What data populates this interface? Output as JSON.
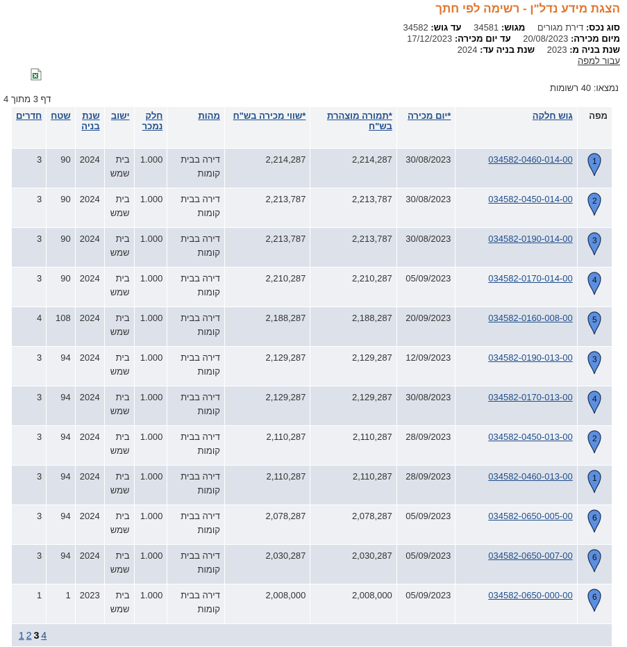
{
  "header": {
    "title": "הצגת מידע נדל\"ן - רשימה לפי חתך"
  },
  "criteria": {
    "asset_type_label": "סוג נכס:",
    "asset_type_value": "דירת מגורים",
    "from_gush_label": "מגוש:",
    "from_gush_value": "34581",
    "to_gush_label": "עד גוש:",
    "to_gush_value": "34582",
    "from_date_label": "מיום מכירה:",
    "from_date_value": "20/08/2023",
    "to_date_label": "עד יום מכירה:",
    "to_date_value": "17/12/2023",
    "from_year_label": "שנת בניה מ:",
    "from_year_value": "2023",
    "to_year_label": "שנת בניה עד:",
    "to_year_value": "2024",
    "map_link": "עבור למפה"
  },
  "summary": {
    "found": "נמצאו: 40 רשומות",
    "page_of": "דף 3 מתוך 4"
  },
  "table": {
    "headers": {
      "map": "מפה",
      "gush": "גוש חלקה",
      "date": "*יום מכירה",
      "declared": "*תמורה מוצהרת בש\"ח",
      "value": "*שווי מכירה בש\"ח",
      "type": "מהות",
      "part": "חלק נמכר",
      "city": "ישוב",
      "year": "שנת בניה",
      "area": "שטח",
      "rooms": "חדרים"
    },
    "rows": [
      {
        "pin": "1",
        "gush": "034582-0460-014-00",
        "date": "30/08/2023",
        "declared": "2,214,287",
        "value": "2,214,287",
        "type": "דירה בבית קומות",
        "part": "1.000",
        "city": "בית שמש",
        "year": "2024",
        "area": "90",
        "rooms": "3"
      },
      {
        "pin": "2",
        "gush": "034582-0450-014-00",
        "date": "30/08/2023",
        "declared": "2,213,787",
        "value": "2,213,787",
        "type": "דירה בבית קומות",
        "part": "1.000",
        "city": "בית שמש",
        "year": "2024",
        "area": "90",
        "rooms": "3"
      },
      {
        "pin": "3",
        "gush": "034582-0190-014-00",
        "date": "30/08/2023",
        "declared": "2,213,787",
        "value": "2,213,787",
        "type": "דירה בבית קומות",
        "part": "1.000",
        "city": "בית שמש",
        "year": "2024",
        "area": "90",
        "rooms": "3"
      },
      {
        "pin": "4",
        "gush": "034582-0170-014-00",
        "date": "05/09/2023",
        "declared": "2,210,287",
        "value": "2,210,287",
        "type": "דירה בבית קומות",
        "part": "1.000",
        "city": "בית שמש",
        "year": "2024",
        "area": "90",
        "rooms": "3"
      },
      {
        "pin": "5",
        "gush": "034582-0160-008-00",
        "date": "20/09/2023",
        "declared": "2,188,287",
        "value": "2,188,287",
        "type": "דירה בבית קומות",
        "part": "1.000",
        "city": "בית שמש",
        "year": "2024",
        "area": "108",
        "rooms": "4"
      },
      {
        "pin": "3",
        "gush": "034582-0190-013-00",
        "date": "12/09/2023",
        "declared": "2,129,287",
        "value": "2,129,287",
        "type": "דירה בבית קומות",
        "part": "1.000",
        "city": "בית שמש",
        "year": "2024",
        "area": "94",
        "rooms": "3"
      },
      {
        "pin": "4",
        "gush": "034582-0170-013-00",
        "date": "30/08/2023",
        "declared": "2,129,287",
        "value": "2,129,287",
        "type": "דירה בבית קומות",
        "part": "1.000",
        "city": "בית שמש",
        "year": "2024",
        "area": "94",
        "rooms": "3"
      },
      {
        "pin": "2",
        "gush": "034582-0450-013-00",
        "date": "28/09/2023",
        "declared": "2,110,287",
        "value": "2,110,287",
        "type": "דירה בבית קומות",
        "part": "1.000",
        "city": "בית שמש",
        "year": "2024",
        "area": "94",
        "rooms": "3"
      },
      {
        "pin": "1",
        "gush": "034582-0460-013-00",
        "date": "28/09/2023",
        "declared": "2,110,287",
        "value": "2,110,287",
        "type": "דירה בבית קומות",
        "part": "1.000",
        "city": "בית שמש",
        "year": "2024",
        "area": "94",
        "rooms": "3"
      },
      {
        "pin": "6",
        "gush": "034582-0650-005-00",
        "date": "05/09/2023",
        "declared": "2,078,287",
        "value": "2,078,287",
        "type": "דירה בבית קומות",
        "part": "1.000",
        "city": "בית שמש",
        "year": "2024",
        "area": "94",
        "rooms": "3"
      },
      {
        "pin": "6",
        "gush": "034582-0650-007-00",
        "date": "05/09/2023",
        "declared": "2,030,287",
        "value": "2,030,287",
        "type": "דירה בבית קומות",
        "part": "1.000",
        "city": "בית שמש",
        "year": "2024",
        "area": "94",
        "rooms": "3"
      },
      {
        "pin": "6",
        "gush": "034582-0650-000-00",
        "date": "05/09/2023",
        "declared": "2,008,000",
        "value": "2,008,000",
        "type": "דירה בבית קומות",
        "part": "1.000",
        "city": "בית שמש",
        "year": "2023",
        "area": "1",
        "rooms": "1"
      }
    ]
  },
  "pager": {
    "pages": [
      "1",
      "2",
      "3",
      "4"
    ],
    "current": "3"
  },
  "icons": {
    "export": "excel-icon",
    "pin": "map-pin-icon"
  },
  "colors": {
    "title": "#e0752d",
    "link": "#1f4e8c",
    "pin_fill": "#5b8fe0",
    "row_odd": "#dde2ea",
    "row_even": "#eef0f4"
  }
}
